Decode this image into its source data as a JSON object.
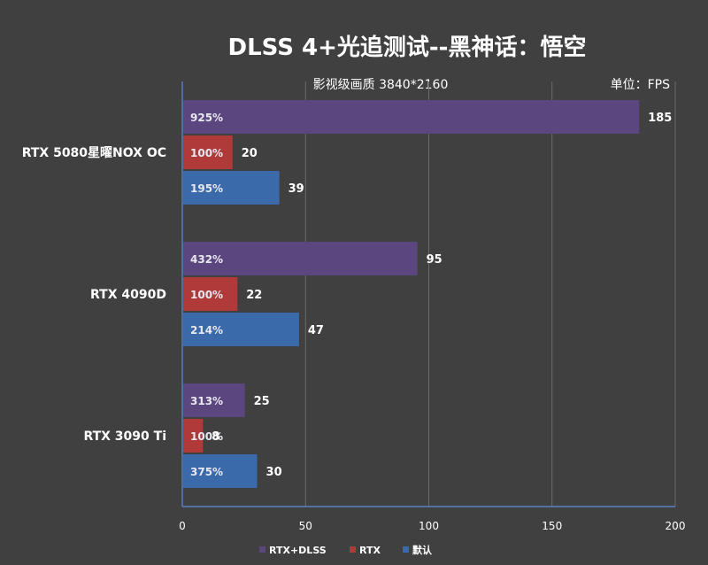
{
  "chart_data": {
    "type": "bar",
    "orientation": "horizontal",
    "title": "DLSS 4+光追测试--黑神话：悟空",
    "subtitle": "影视级画质 3840*2160",
    "unit_label": "单位：FPS",
    "categories": [
      "RTX 5080星曜NOX OC",
      "RTX 4090D",
      "RTX 3090 Ti"
    ],
    "series": [
      {
        "name": "RTX+DLSS",
        "color": "#5c4680",
        "values": [
          185,
          95,
          25
        ],
        "percent_labels": [
          "925%",
          "432%",
          "313%"
        ]
      },
      {
        "name": "RTX",
        "color": "#b03a3a",
        "values": [
          20,
          22,
          8
        ],
        "percent_labels": [
          "100%",
          "100%",
          "100%"
        ]
      },
      {
        "name": "默认",
        "color": "#3a6aaa",
        "values": [
          39,
          47,
          30
        ],
        "percent_labels": [
          "195%",
          "214%",
          "375%"
        ]
      }
    ],
    "xlim": [
      0,
      200
    ],
    "x_ticks": [
      0,
      50,
      100,
      150,
      200
    ],
    "grid": true,
    "legend_position": "bottom"
  }
}
